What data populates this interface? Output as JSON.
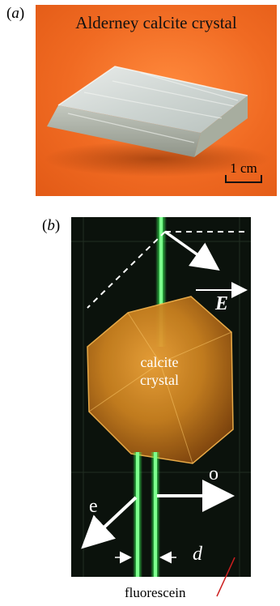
{
  "panel_a": {
    "label": "a",
    "title": "Alderney calcite crystal",
    "scale_bar": "1 cm"
  },
  "panel_b": {
    "label": "b",
    "field_label": "E",
    "crystal_label_line1": "calcite",
    "crystal_label_line2": "crystal",
    "ordinary_label": "o",
    "extraordinary_label": "e",
    "separation_label": "d",
    "fluorescein_label": "fluorescein"
  },
  "colors": {
    "background_orange": "#f06a22",
    "laser_green": "#3cff5a",
    "crystal_amber": "#c9801f",
    "annotation_white": "#ffffff",
    "pointer_red": "#cc1f1f"
  }
}
